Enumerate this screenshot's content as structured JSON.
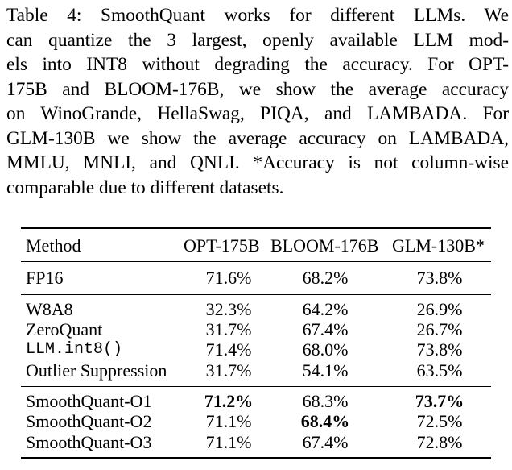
{
  "caption": {
    "lines": [
      "Table 4: SmoothQuant works for different LLMs. We",
      "can quantize the 3 largest, openly available LLM mod-",
      "els into INT8 without degrading the accuracy. For OPT-",
      "175B and BLOOM-176B, we show the average accuracy",
      "on WinoGrande, HellaSwag, PIQA, and LAMBADA. For",
      "GLM-130B we show the average accuracy on LAMBADA,",
      "MMLU, MNLI, and QNLI. *Accuracy is not column-wise",
      "comparable due to different datasets."
    ]
  },
  "table": {
    "headers": [
      "Method",
      "OPT-175B",
      "BLOOM-176B",
      "GLM-130B*"
    ],
    "rows": [
      {
        "method": "FP16",
        "values": [
          "71.6%",
          "68.2%",
          "73.8%"
        ]
      },
      {
        "method": "W8A8",
        "values": [
          "32.3%",
          "64.2%",
          "26.9%"
        ]
      },
      {
        "method": "ZeroQuant",
        "values": [
          "31.7%",
          "67.4%",
          "26.7%"
        ]
      },
      {
        "method": "LLM.int8()",
        "values": [
          "71.4%",
          "68.0%",
          "73.8%"
        ],
        "monospace": true
      },
      {
        "method": "Outlier Suppression",
        "values": [
          "31.7%",
          "54.1%",
          "63.5%"
        ]
      },
      {
        "method": "SmoothQuant-O1",
        "values": [
          "71.2%",
          "68.3%",
          "73.7%"
        ],
        "bold": [
          true,
          false,
          true
        ]
      },
      {
        "method": "SmoothQuant-O2",
        "values": [
          "71.1%",
          "68.4%",
          "72.5%"
        ],
        "bold": [
          false,
          true,
          false
        ]
      },
      {
        "method": "SmoothQuant-O3",
        "values": [
          "71.1%",
          "67.4%",
          "72.8%"
        ]
      }
    ]
  }
}
